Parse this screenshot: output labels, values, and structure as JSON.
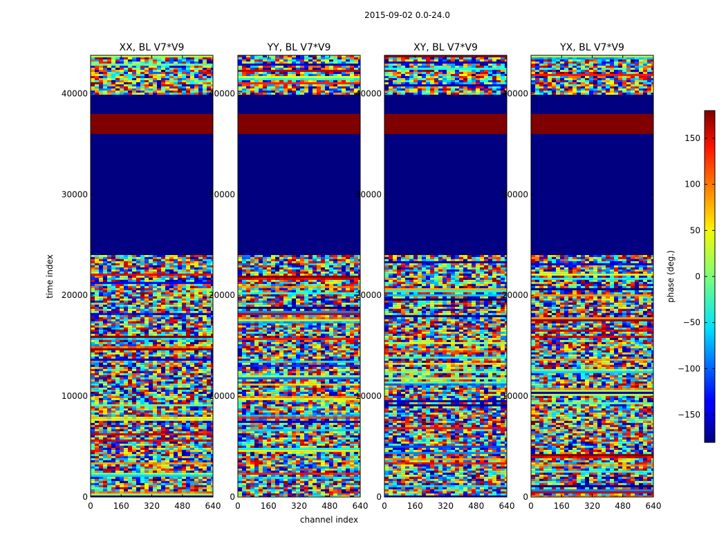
{
  "figure": {
    "suptitle": "2015-09-02 0.0-24.0"
  },
  "chart_data": {
    "type": "heatmap",
    "title": "2015-09-02 0.0-24.0",
    "xlabel": "channel index",
    "ylabel": "time index",
    "xlim": [
      0,
      640
    ],
    "ylim": [
      0,
      43800
    ],
    "xticks": [
      0,
      160,
      320,
      480,
      640
    ],
    "yticks": [
      0,
      10000,
      20000,
      30000,
      40000
    ],
    "panels": [
      {
        "title": "XX, BL V7*V9"
      },
      {
        "title": "YY, BL V7*V9"
      },
      {
        "title": "XY, BL V7*V9"
      },
      {
        "title": "YX, BL V7*V9"
      }
    ],
    "colorbar": {
      "label": "phase (deg.)",
      "range": [
        -180,
        180
      ],
      "ticks": [
        -150,
        -100,
        -50,
        0,
        50,
        100,
        150
      ],
      "colormap": "jet"
    },
    "regions": [
      {
        "from": 0,
        "to": 24000,
        "kind": "noisy phase"
      },
      {
        "from": 24000,
        "to": 36000,
        "kind": "constant",
        "value": -180
      },
      {
        "from": 36000,
        "to": 38000,
        "kind": "constant",
        "value": 180
      },
      {
        "from": 38000,
        "to": 40000,
        "kind": "constant",
        "value": -180
      },
      {
        "from": 40000,
        "to": 43800,
        "kind": "noisy phase"
      }
    ]
  }
}
